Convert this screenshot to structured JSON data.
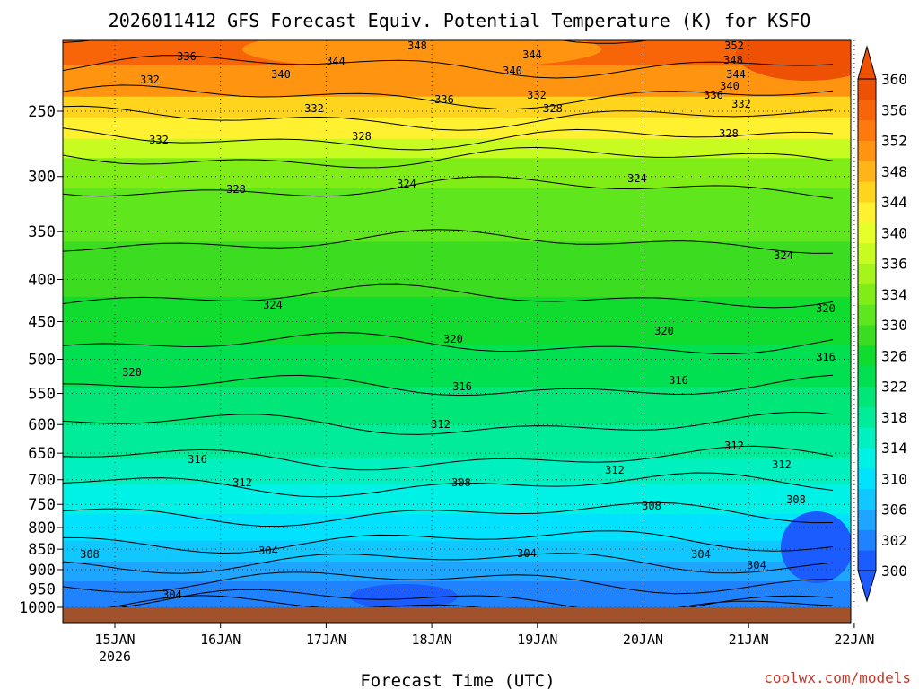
{
  "chart_data": {
    "type": "heatmap",
    "title": "2026011412 GFS Forecast Equiv. Potential Temperature (K) for KSFO",
    "xlabel": "Forecast Time (UTC)",
    "ylabel": "",
    "credit": "coolwx.com/models",
    "x_ticks": [
      {
        "label": "15JAN",
        "sublabel": "2026",
        "day": 1.0
      },
      {
        "label": "16JAN",
        "day": 2.0
      },
      {
        "label": "17JAN",
        "day": 3.0
      },
      {
        "label": "18JAN",
        "day": 4.0
      },
      {
        "label": "19JAN",
        "day": 5.0
      },
      {
        "label": "20JAN",
        "day": 6.0
      },
      {
        "label": "21JAN",
        "day": 7.0
      },
      {
        "label": "22JAN",
        "day": 8.0
      }
    ],
    "xlim_days": [
      0.5,
      8.0
    ],
    "y_ticks": [
      250,
      300,
      350,
      400,
      450,
      500,
      550,
      600,
      650,
      700,
      750,
      800,
      850,
      900,
      950,
      1000
    ],
    "ylim": [
      200,
      1000
    ],
    "y_scale": "log-pressure",
    "colorbar": {
      "levels": [
        300,
        302,
        304,
        306,
        308,
        310,
        312,
        314,
        316,
        318,
        320,
        322,
        324,
        326,
        328,
        330,
        332,
        334,
        336,
        340,
        344,
        348,
        352,
        356,
        360
      ],
      "labels": [
        300,
        302,
        306,
        310,
        314,
        318,
        322,
        326,
        330,
        334,
        336,
        340,
        344,
        348,
        352,
        356,
        360
      ],
      "colors": [
        "#1a5cff",
        "#1f82ff",
        "#1ea6ff",
        "#10c8ff",
        "#00e2ff",
        "#00f2e6",
        "#00f0c0",
        "#00ec9b",
        "#00e678",
        "#00e050",
        "#10dc30",
        "#3cdc20",
        "#60e61c",
        "#80ee16",
        "#a6f51a",
        "#c8fb20",
        "#e6ff28",
        "#fff030",
        "#ffd41c",
        "#ffb418",
        "#ff9410",
        "#ff7a0c",
        "#f86408",
        "#ee5004"
      ]
    },
    "contour_labels": [
      "348",
      "352",
      "336",
      "344",
      "344",
      "340",
      "348",
      "340",
      "344",
      "332",
      "340",
      "336",
      "332",
      "332",
      "336",
      "332",
      "328",
      "332",
      "328",
      "328",
      "328",
      "324",
      "324",
      "324",
      "324",
      "320",
      "320",
      "320",
      "320",
      "316",
      "316",
      "316",
      "316",
      "312",
      "312",
      "312",
      "312",
      "312",
      "308",
      "308",
      "308",
      "308",
      "304",
      "304",
      "304",
      "304",
      "304"
    ],
    "grid": "dotted at pressure levels and days",
    "surface_band": "brown ground band below 1000 hPa"
  }
}
